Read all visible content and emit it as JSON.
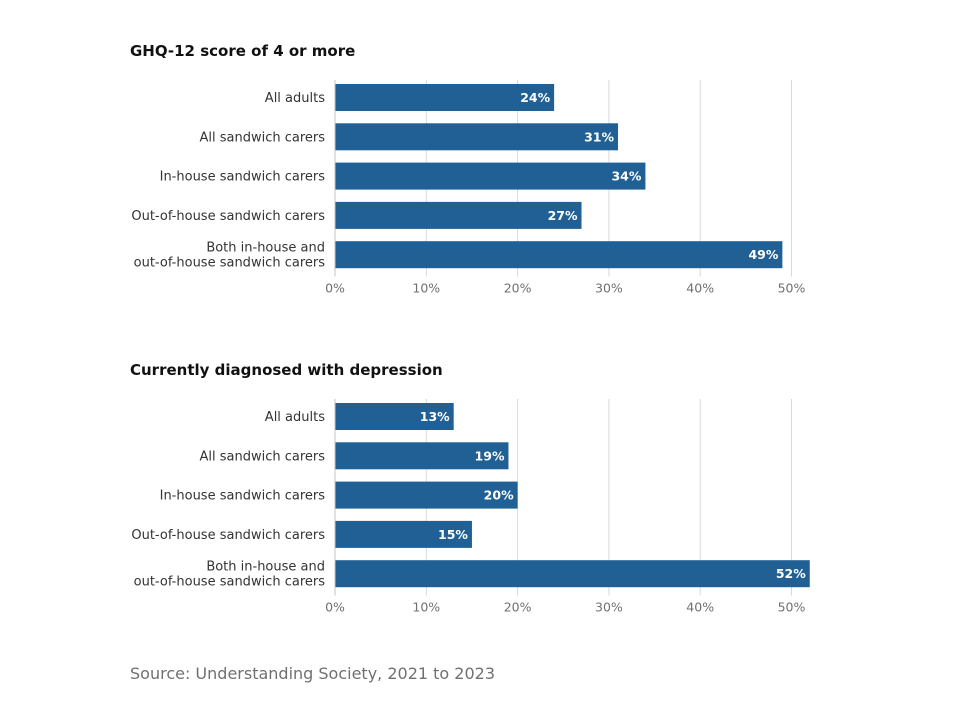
{
  "colors": {
    "bar": "#206095",
    "grid": "#d9d9d9",
    "axis": "#c4c4c4"
  },
  "chart_data": [
    {
      "type": "bar",
      "orientation": "horizontal",
      "title": "GHQ-12 score of 4 or more",
      "categories": [
        [
          "All adults"
        ],
        [
          "All sandwich carers"
        ],
        [
          "In-house sandwich carers"
        ],
        [
          "Out-of-house sandwich carers"
        ],
        [
          "Both in-house and",
          "out-of-house sandwich carers"
        ]
      ],
      "values": [
        24,
        31,
        34,
        27,
        49
      ],
      "value_labels": [
        "24%",
        "31%",
        "34%",
        "27%",
        "49%"
      ],
      "xlim": [
        0,
        50
      ],
      "ticks": [
        0,
        10,
        20,
        30,
        40,
        50
      ],
      "tick_labels": [
        "0%",
        "10%",
        "20%",
        "30%",
        "40%",
        "50%"
      ],
      "grid": true
    },
    {
      "type": "bar",
      "orientation": "horizontal",
      "title": "Currently diagnosed with depression",
      "categories": [
        [
          "All adults"
        ],
        [
          "All sandwich carers"
        ],
        [
          "In-house sandwich carers"
        ],
        [
          "Out-of-house sandwich carers"
        ],
        [
          "Both in-house and",
          "out-of-house sandwich carers"
        ]
      ],
      "values": [
        13,
        19,
        20,
        15,
        52
      ],
      "value_labels": [
        "13%",
        "19%",
        "20%",
        "15%",
        "52%"
      ],
      "xlim": [
        0,
        50
      ],
      "ticks": [
        0,
        10,
        20,
        30,
        40,
        50
      ],
      "tick_labels": [
        "0%",
        "10%",
        "20%",
        "30%",
        "40%",
        "50%"
      ],
      "grid": true
    }
  ],
  "source": "Source: Understanding Society, 2021 to 2023"
}
